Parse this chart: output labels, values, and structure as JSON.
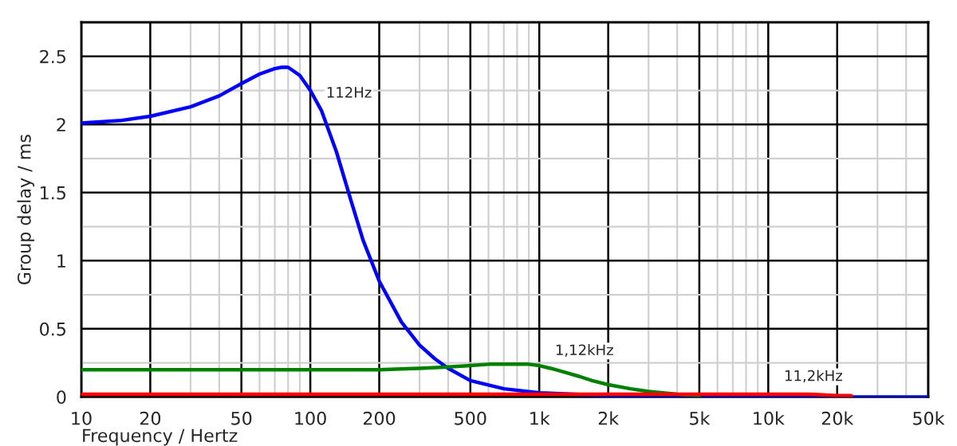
{
  "chart_data": {
    "type": "line",
    "xlabel": "Frequency / Hertz",
    "ylabel": "Group delay / ms",
    "log": "x",
    "grid": true,
    "marker": "none",
    "line_style": "solid",
    "xlim": [
      10,
      50000
    ],
    "ylim": [
      0,
      2.75
    ],
    "xticks": [
      10,
      20,
      50,
      100,
      200,
      500,
      {
        "value": 1000,
        "label": "1k"
      },
      {
        "value": 2000,
        "label": "2k"
      },
      {
        "value": 5000,
        "label": "5k"
      },
      {
        "value": 10000,
        "label": "10k"
      },
      {
        "value": 20000,
        "label": "20k"
      },
      {
        "value": 50000,
        "label": "50k"
      }
    ],
    "yticks": [
      0,
      0.5,
      1,
      1.5,
      2,
      2.5
    ],
    "series": [
      {
        "color": "#0000ff",
        "x": [
          10,
          15,
          20,
          30,
          40,
          50,
          60,
          70,
          75,
          80,
          90,
          100,
          112,
          130,
          150,
          170,
          200,
          250,
          300,
          350,
          400,
          500,
          700,
          1000,
          2000,
          5000,
          10000,
          50000
        ],
        "values": [
          2.01,
          2.03,
          2.06,
          2.13,
          2.21,
          2.3,
          2.37,
          2.41,
          2.42,
          2.42,
          2.36,
          2.25,
          2.1,
          1.8,
          1.45,
          1.15,
          0.85,
          0.55,
          0.38,
          0.28,
          0.21,
          0.12,
          0.06,
          0.03,
          0.01,
          0,
          0,
          0
        ]
      },
      {
        "color": "#008000",
        "x": [
          10,
          100,
          200,
          300,
          400,
          500,
          600,
          700,
          800,
          900,
          1000,
          1120,
          1300,
          1500,
          1700,
          2000,
          2500,
          3000,
          4000,
          5000
        ],
        "values": [
          0.2,
          0.2,
          0.2,
          0.21,
          0.22,
          0.23,
          0.24,
          0.24,
          0.24,
          0.24,
          0.23,
          0.21,
          0.18,
          0.15,
          0.12,
          0.09,
          0.06,
          0.04,
          0.02,
          0.01
        ]
      },
      {
        "color": "#ff0000",
        "x": [
          10,
          1000,
          3000,
          5000,
          7500,
          10000,
          11200,
          13000,
          15000,
          20000,
          23000
        ],
        "values": [
          0.02,
          0.02,
          0.02,
          0.02,
          0.02,
          0.02,
          0.02,
          0.02,
          0.02,
          0.01,
          0.01
        ]
      }
    ],
    "annotations": [
      {
        "text": "112Hz",
        "x": 112,
        "y": 2.1
      },
      {
        "text": "1,12kHz",
        "x": 1120,
        "y": 0.21
      },
      {
        "text": "11,2kHz",
        "x": 11200,
        "y": 0.021
      }
    ]
  }
}
